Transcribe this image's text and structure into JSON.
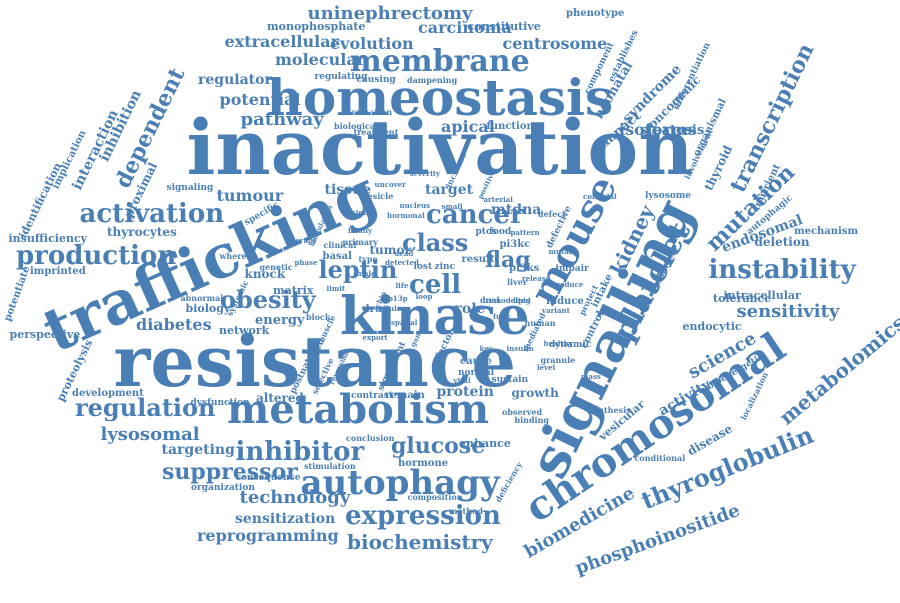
{
  "word_color": "#4a7fb5",
  "background": "#ffffff",
  "words": [
    "inactivation",
    "resistance",
    "trafficking",
    "signalling",
    "chromosomal",
    "kinase",
    "homeostasis",
    "metabolism",
    "mouse",
    "autophagy",
    "platelet",
    "membrane",
    "instability",
    "expression",
    "inhibitor",
    "thyroglobulin",
    "activation",
    "production",
    "regulation",
    "transcription",
    "mutation",
    "metabolomics",
    "biochemistry",
    "obesity",
    "suppressor",
    "glucose",
    "cancer",
    "leptin",
    "class",
    "flag",
    "cell",
    "kidney",
    "uninephrectomy",
    "phosphoinositide",
    "biomedicine",
    "dependent",
    "sensitivity",
    "science",
    "evolution",
    "centrosome",
    "molecular",
    "extracellular",
    "carcinoma",
    "technology",
    "reprogramming",
    "sensitization",
    "lysosomal",
    "targeting",
    "diabetes",
    "tumour",
    "tissue",
    "pathway",
    "potential",
    "regulator",
    "apical",
    "isoforms",
    "inhibition",
    "interaction",
    "proximal",
    "thyrocytes",
    "endosomal",
    "deletion",
    "intracellular",
    "tolerance",
    "endocytic",
    "activity",
    "disease",
    "vesicular",
    "syndrome",
    "oncogenic",
    "steatosis",
    "impact",
    "neonatal",
    "organismal",
    "thyroid",
    "nutrient",
    "lysosome",
    "autophagic",
    "mechanism",
    "insufficiency",
    "imprinted",
    "perspective",
    "proteolysis",
    "development",
    "dysfunction",
    "altered",
    "contrast",
    "remain",
    "protein",
    "growth",
    "enhance",
    "hormone",
    "consequence",
    "stimulation",
    "organization",
    "composition",
    "method",
    "deficiency",
    "observed",
    "binding",
    "cause",
    "normal",
    "sustain",
    "energy",
    "network",
    "biology",
    "matrix",
    "knock",
    "tumor",
    "basal",
    "result",
    "role",
    "mtdna",
    "target",
    "pi3kc",
    "pi3ks",
    "lost",
    "zinc",
    "ptcs",
    "food",
    "monophosphate",
    "constitutive",
    "phenotype",
    "implication",
    "identification",
    "potentiate",
    "iodination",
    "establishes",
    "differentiation",
    "component",
    "regulating",
    "causing",
    "dampening",
    "biological",
    "treatment",
    "function",
    "formation",
    "involvement",
    "localization",
    "bioenergetic",
    "synthesis",
    "conditional",
    "conclusion",
    "defective",
    "intake",
    "control",
    "human",
    "induce",
    "protect",
    "dynamic",
    "impair",
    "specific",
    "signaling",
    "genetic",
    "abnormal",
    "systemic",
    "block",
    "muscle",
    "clinical",
    "primary",
    "whereas",
    "vesicle",
    "uncover",
    "severity",
    "increase",
    "positive",
    "fed",
    "drug",
    "dual",
    "liver",
    "mutant",
    "colloidal",
    "mediated",
    "defect",
    "healthy",
    "granule",
    "factor",
    "significant",
    "postnatal",
    "selective",
    "reversible",
    "export",
    "detected",
    "type",
    "male",
    "dead",
    "life",
    "p13p",
    "remodeling",
    "lipid",
    "loop",
    "chip",
    "cellular",
    "spatial",
    "gamma",
    "finally",
    "modulation",
    "therapy",
    "pattern",
    "release",
    "reduce",
    "level",
    "mass",
    "insulin",
    "key",
    "vital",
    "small",
    "arterial",
    "nucleus",
    "hormonal",
    "insight",
    "limit",
    "phase",
    "fully",
    "variant",
    "blood",
    "novel",
    "link"
  ]
}
